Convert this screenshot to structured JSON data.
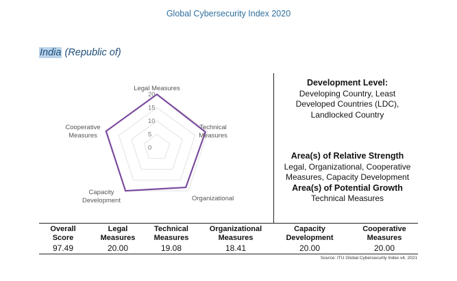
{
  "header": {
    "title": "Global Cybersecurity Index 2020"
  },
  "country": {
    "name": "India",
    "suffix": "(Republic of)"
  },
  "radar": {
    "axes": [
      "Legal Measures",
      "Technical Measures",
      "Organizational",
      "Capacity Development",
      "Cooperative Measures"
    ],
    "ticks": [
      "20",
      "15",
      "10",
      "5",
      "0"
    ],
    "max": 20,
    "values": [
      20.0,
      19.08,
      18.41,
      20.0,
      20.0
    ],
    "series_color": "#7b4a9e"
  },
  "development": {
    "heading": "Development Level:",
    "lines": [
      "Developing Country, Least",
      "Developed Countries (LDC),",
      "Landlocked Country"
    ]
  },
  "strengths": {
    "heading": "Area(s) of Relative Strength",
    "lines": [
      "Legal, Organizational, Cooperative",
      "Measures, Capacity Development"
    ]
  },
  "growth": {
    "heading": "Area(s) of Potential Growth",
    "lines": [
      "Technical Measures"
    ]
  },
  "scores": [
    {
      "h1": "Overall",
      "h2": "Score",
      "value": "97.49"
    },
    {
      "h1": "Legal",
      "h2": "Measures",
      "value": "20.00"
    },
    {
      "h1": "Technical",
      "h2": "Measures",
      "value": "19.08"
    },
    {
      "h1": "Organizational",
      "h2": "Measures",
      "value": "18.41"
    },
    {
      "h1": "Capacity",
      "h2": "Development",
      "value": "20.00"
    },
    {
      "h1": "Cooperative",
      "h2": "Measures",
      "value": "20.00"
    }
  ],
  "source": "Source: ITU Global Cybersecurity Index v4, 2021"
}
